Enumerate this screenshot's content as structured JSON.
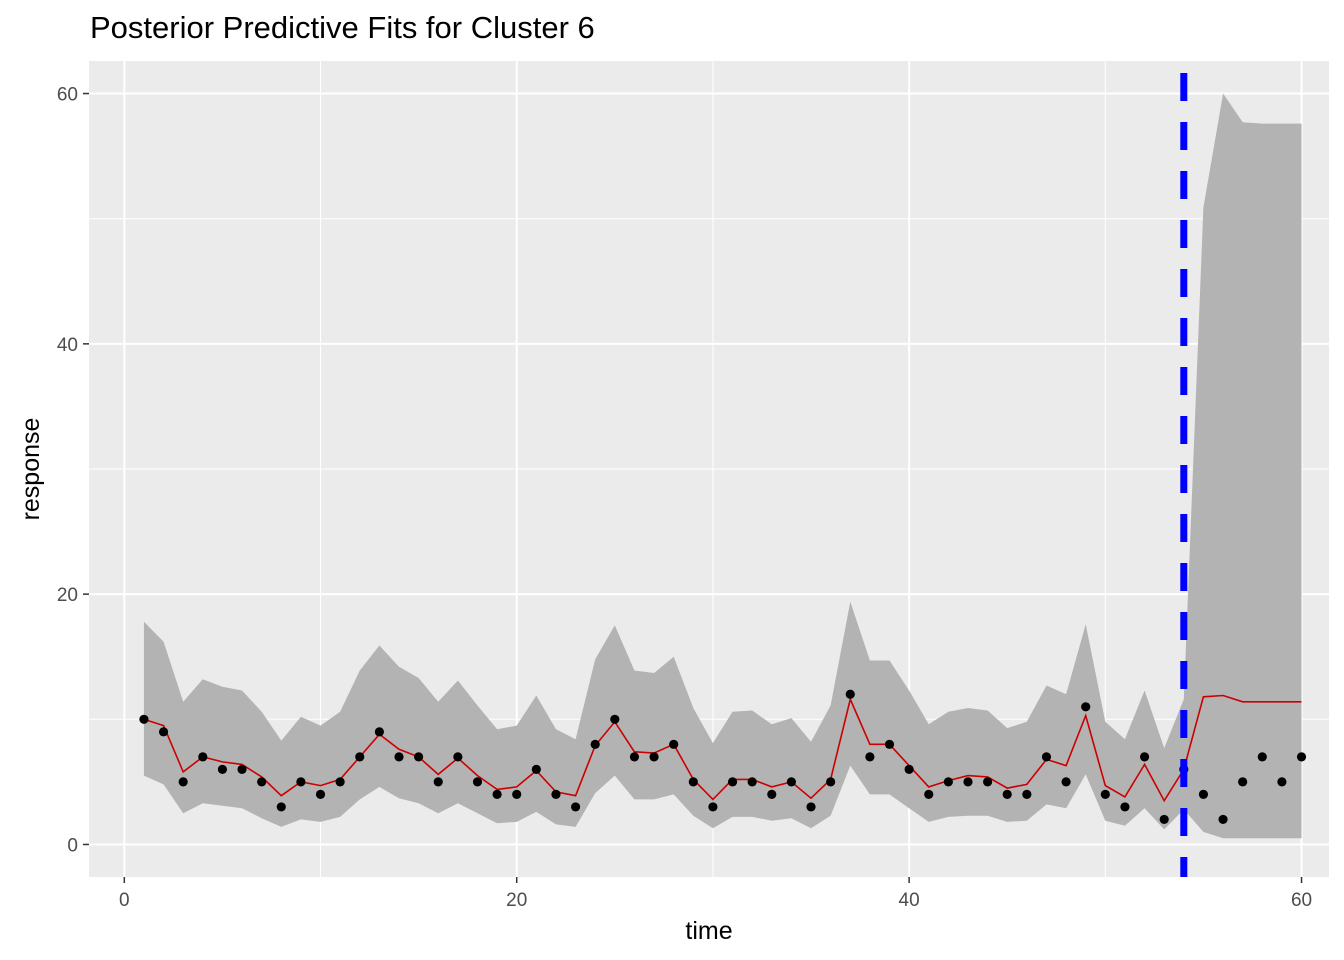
{
  "chart_data": {
    "type": "line",
    "title": "Posterior Predictive Fits for Cluster 6",
    "xlabel": "time",
    "ylabel": "response",
    "xlim": [
      -1.8,
      61.4
    ],
    "ylim": [
      -2.6,
      62.6
    ],
    "x_ticks": [
      0,
      20,
      40,
      60
    ],
    "y_ticks": [
      0,
      20,
      40,
      60
    ],
    "grid": true,
    "legend": "none",
    "vline": {
      "x": 54,
      "color": "#0000ff",
      "style": "dashed"
    },
    "colors": {
      "panel": "#ebebeb",
      "grid_major": "#ffffff",
      "ribbon": "#b3b3b3",
      "fit_line": "#cc0000",
      "points": "#000000"
    },
    "observed": {
      "x": [
        1,
        2,
        3,
        4,
        5,
        6,
        7,
        8,
        9,
        10,
        11,
        12,
        13,
        14,
        15,
        16,
        17,
        18,
        19,
        20,
        21,
        22,
        23,
        24,
        25,
        26,
        27,
        28,
        29,
        30,
        31,
        32,
        33,
        34,
        35,
        36,
        37,
        38,
        39,
        40,
        41,
        42,
        43,
        44,
        45,
        46,
        47,
        48,
        49,
        50,
        51,
        52,
        53,
        54,
        55,
        56,
        57,
        58,
        59,
        60
      ],
      "y": [
        10,
        9,
        5,
        7,
        6,
        6,
        5,
        3,
        5,
        4,
        5,
        7,
        9,
        7,
        7,
        5,
        7,
        5,
        4,
        4,
        6,
        4,
        3,
        8,
        10,
        7,
        7,
        8,
        5,
        3,
        5,
        5,
        4,
        5,
        3,
        5,
        12,
        7,
        8,
        6,
        4,
        5,
        5,
        5,
        4,
        4,
        7,
        5,
        11,
        4,
        3,
        7,
        2,
        6,
        4,
        2,
        5,
        7,
        5,
        7
      ]
    },
    "fit": {
      "x": [
        1,
        2,
        3,
        4,
        5,
        6,
        7,
        8,
        9,
        10,
        11,
        12,
        13,
        14,
        15,
        16,
        17,
        18,
        19,
        20,
        21,
        22,
        23,
        24,
        25,
        26,
        27,
        28,
        29,
        30,
        31,
        32,
        33,
        34,
        35,
        36,
        37,
        38,
        39,
        40,
        41,
        42,
        43,
        44,
        45,
        46,
        47,
        48,
        49,
        50,
        51,
        52,
        53,
        54,
        55,
        56,
        57,
        58,
        59,
        60
      ],
      "y": [
        10,
        9.5,
        5.8,
        7,
        6.6,
        6.4,
        5.4,
        3.9,
        5.0,
        4.7,
        5.2,
        7.0,
        8.8,
        7.6,
        7.0,
        5.6,
        6.9,
        5.5,
        4.4,
        4.6,
        5.9,
        4.2,
        3.9,
        7.9,
        9.8,
        7.4,
        7.3,
        8.0,
        5.2,
        3.6,
        5.2,
        5.2,
        4.6,
        5.0,
        3.7,
        5.2,
        11.6,
        8.0,
        8.0,
        6.3,
        4.6,
        5.1,
        5.5,
        5.4,
        4.5,
        4.8,
        6.8,
        6.3,
        10.3,
        4.7,
        3.8,
        6.4,
        3.5,
        6.0,
        11.8,
        11.9,
        11.4,
        11.4,
        11.4,
        11.4
      ],
      "lower": [
        5.5,
        4.8,
        2.5,
        3.3,
        3.1,
        2.9,
        2.1,
        1.4,
        2.0,
        1.8,
        2.2,
        3.6,
        4.6,
        3.7,
        3.3,
        2.5,
        3.3,
        2.5,
        1.7,
        1.8,
        2.6,
        1.6,
        1.4,
        4.1,
        5.5,
        3.6,
        3.6,
        4.0,
        2.3,
        1.3,
        2.2,
        2.2,
        1.9,
        2.1,
        1.3,
        2.3,
        6.3,
        4.0,
        4.0,
        2.9,
        1.8,
        2.2,
        2.3,
        2.3,
        1.8,
        1.9,
        3.2,
        2.9,
        5.6,
        1.9,
        1.5,
        2.9,
        1.2,
        2.8,
        1.0,
        0.5,
        0.5,
        0.5,
        0.5,
        0.5
      ],
      "upper": [
        17.8,
        16.2,
        11.4,
        13.2,
        12.6,
        12.3,
        10.6,
        8.3,
        10.2,
        9.5,
        10.6,
        13.9,
        15.9,
        14.2,
        13.3,
        11.4,
        13.1,
        11.1,
        9.2,
        9.5,
        11.9,
        9.2,
        8.4,
        14.8,
        17.5,
        13.9,
        13.7,
        15.0,
        10.9,
        8.1,
        10.6,
        10.7,
        9.6,
        10.1,
        8.2,
        11.1,
        19.4,
        14.7,
        14.7,
        12.3,
        9.6,
        10.6,
        10.9,
        10.7,
        9.3,
        9.8,
        12.7,
        12.0,
        17.6,
        9.8,
        8.4,
        12.3,
        7.7,
        11.6,
        50.9,
        60.0,
        57.7,
        57.6,
        57.6,
        57.6
      ]
    }
  }
}
